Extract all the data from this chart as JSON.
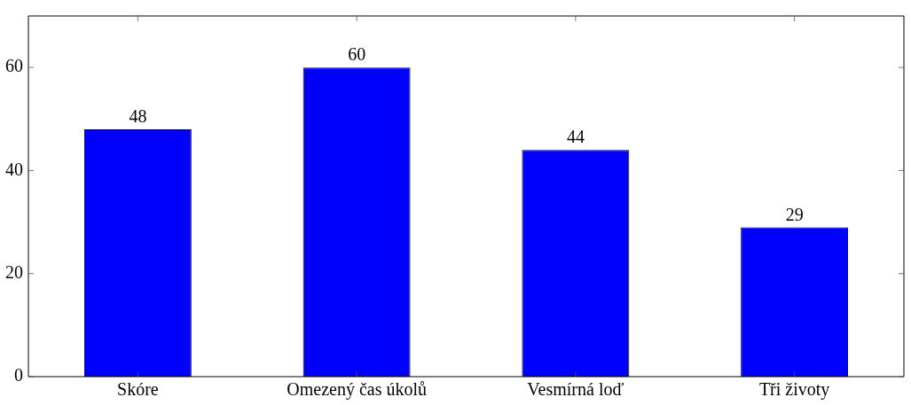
{
  "chart_data": {
    "type": "bar",
    "categories": [
      "Skóre",
      "Omezený čas úkolů",
      "Vesmírná loď",
      "Tři životy"
    ],
    "values": [
      48,
      60,
      44,
      29
    ],
    "color": "#0000ff",
    "ylim": [
      0,
      70
    ],
    "yticks": [
      0,
      20,
      40,
      60
    ],
    "grid": false,
    "legend": false,
    "data_labels": true
  }
}
